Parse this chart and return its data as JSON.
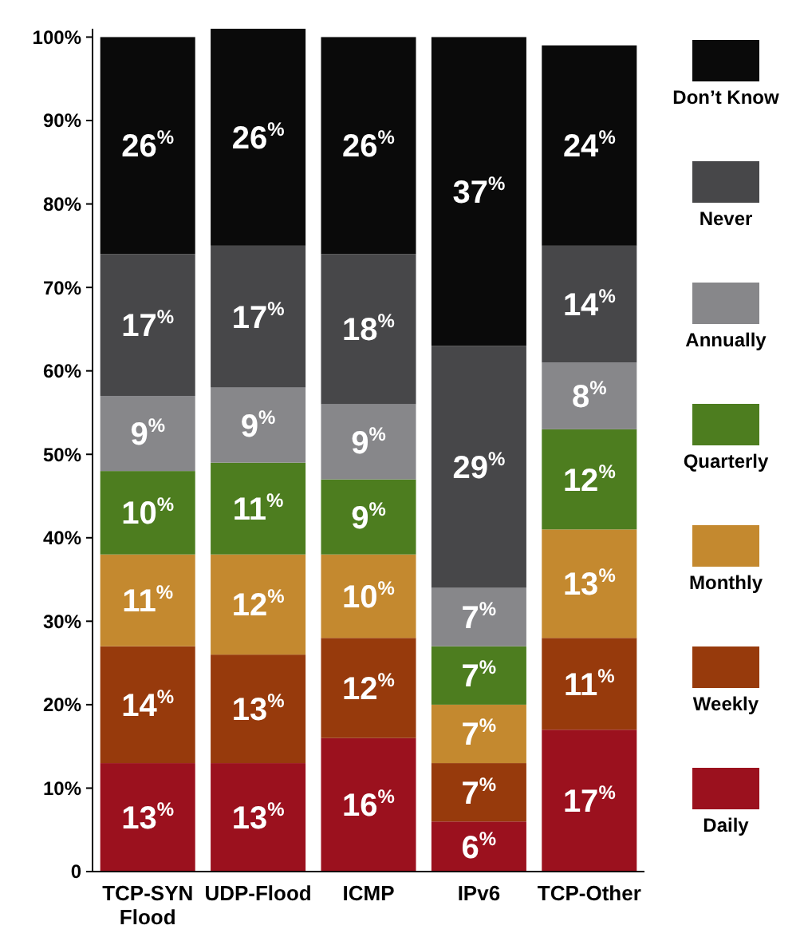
{
  "chart_data": {
    "type": "bar",
    "stacked": true,
    "categories": [
      "TCP-SYN Flood",
      "UDP-Flood",
      "ICMP",
      "IPv6",
      "TCP-Other"
    ],
    "series": [
      {
        "name": "Daily",
        "color": "#9b111e",
        "values": [
          13,
          13,
          16,
          6,
          17
        ],
        "value_labels": [
          "13$^{%}$",
          "13$^{%}$",
          "16$^{%}$",
          "6$^{%}$",
          "17$^{%}$"
        ]
      },
      {
        "name": "Weekly",
        "color": "#973a0c",
        "values": [
          14,
          13,
          12,
          7,
          11
        ],
        "value_labels": [
          "14$^{%}$",
          "13$^{%}$",
          "12$^{%}$",
          "7$^{%}$",
          "11$^{%}$"
        ]
      },
      {
        "name": "Monthly",
        "color": "#c4892f",
        "values": [
          11,
          12,
          10,
          7,
          13
        ],
        "value_labels": [
          "11$^{%}$",
          "12$^{%}$",
          "10$^{%}$",
          "7$^{%}$",
          "13$^{%}$"
        ]
      },
      {
        "name": "Quarterly",
        "color": "#4d7d1f",
        "values": [
          10,
          11,
          9,
          7,
          12
        ],
        "value_labels": [
          "10$^{%}$",
          "11$^{%}$",
          "9$^{%}$",
          "7$^{%}$",
          "12$^{%}$"
        ]
      },
      {
        "name": "Annually",
        "color": "#87878a",
        "values": [
          9,
          9,
          9,
          7,
          8
        ],
        "value_labels": [
          "9$^{%}$",
          "9$^{%}$",
          "9$^{%}$",
          "7$^{%}$",
          "8$^{%}$"
        ]
      },
      {
        "name": "Never",
        "color": "#474749",
        "values": [
          17,
          17,
          18,
          29,
          14
        ],
        "value_labels": [
          "17$^{%}$",
          "17$^{%}$",
          "18$^{%}$",
          "29$^{%}$",
          "14$^{%}$"
        ]
      },
      {
        "name": "Don’t Know",
        "color": "#0a0a0a",
        "values": [
          26,
          26,
          26,
          37,
          24
        ],
        "value_labels": [
          "26$^{%}$",
          "26$^{%}$",
          "26$^{%}$",
          "37$^{%}$",
          "24$^{%}$"
        ]
      }
    ],
    "ylim": [
      0,
      101
    ],
    "yticks": [
      0,
      {
        "value": 10,
        "label": "10%"
      },
      {
        "value": 20,
        "label": "20%"
      },
      {
        "value": 30,
        "label": "30%"
      },
      {
        "value": 40,
        "label": "40%"
      },
      {
        "value": 50,
        "label": "50%"
      },
      {
        "value": 60,
        "label": "60%"
      },
      {
        "value": 70,
        "label": "70%"
      },
      {
        "value": 80,
        "label": "80%"
      },
      {
        "value": 90,
        "label": "90%"
      },
      {
        "value": 100,
        "label": "100%"
      }
    ],
    "grid": false,
    "legend": "right"
  }
}
